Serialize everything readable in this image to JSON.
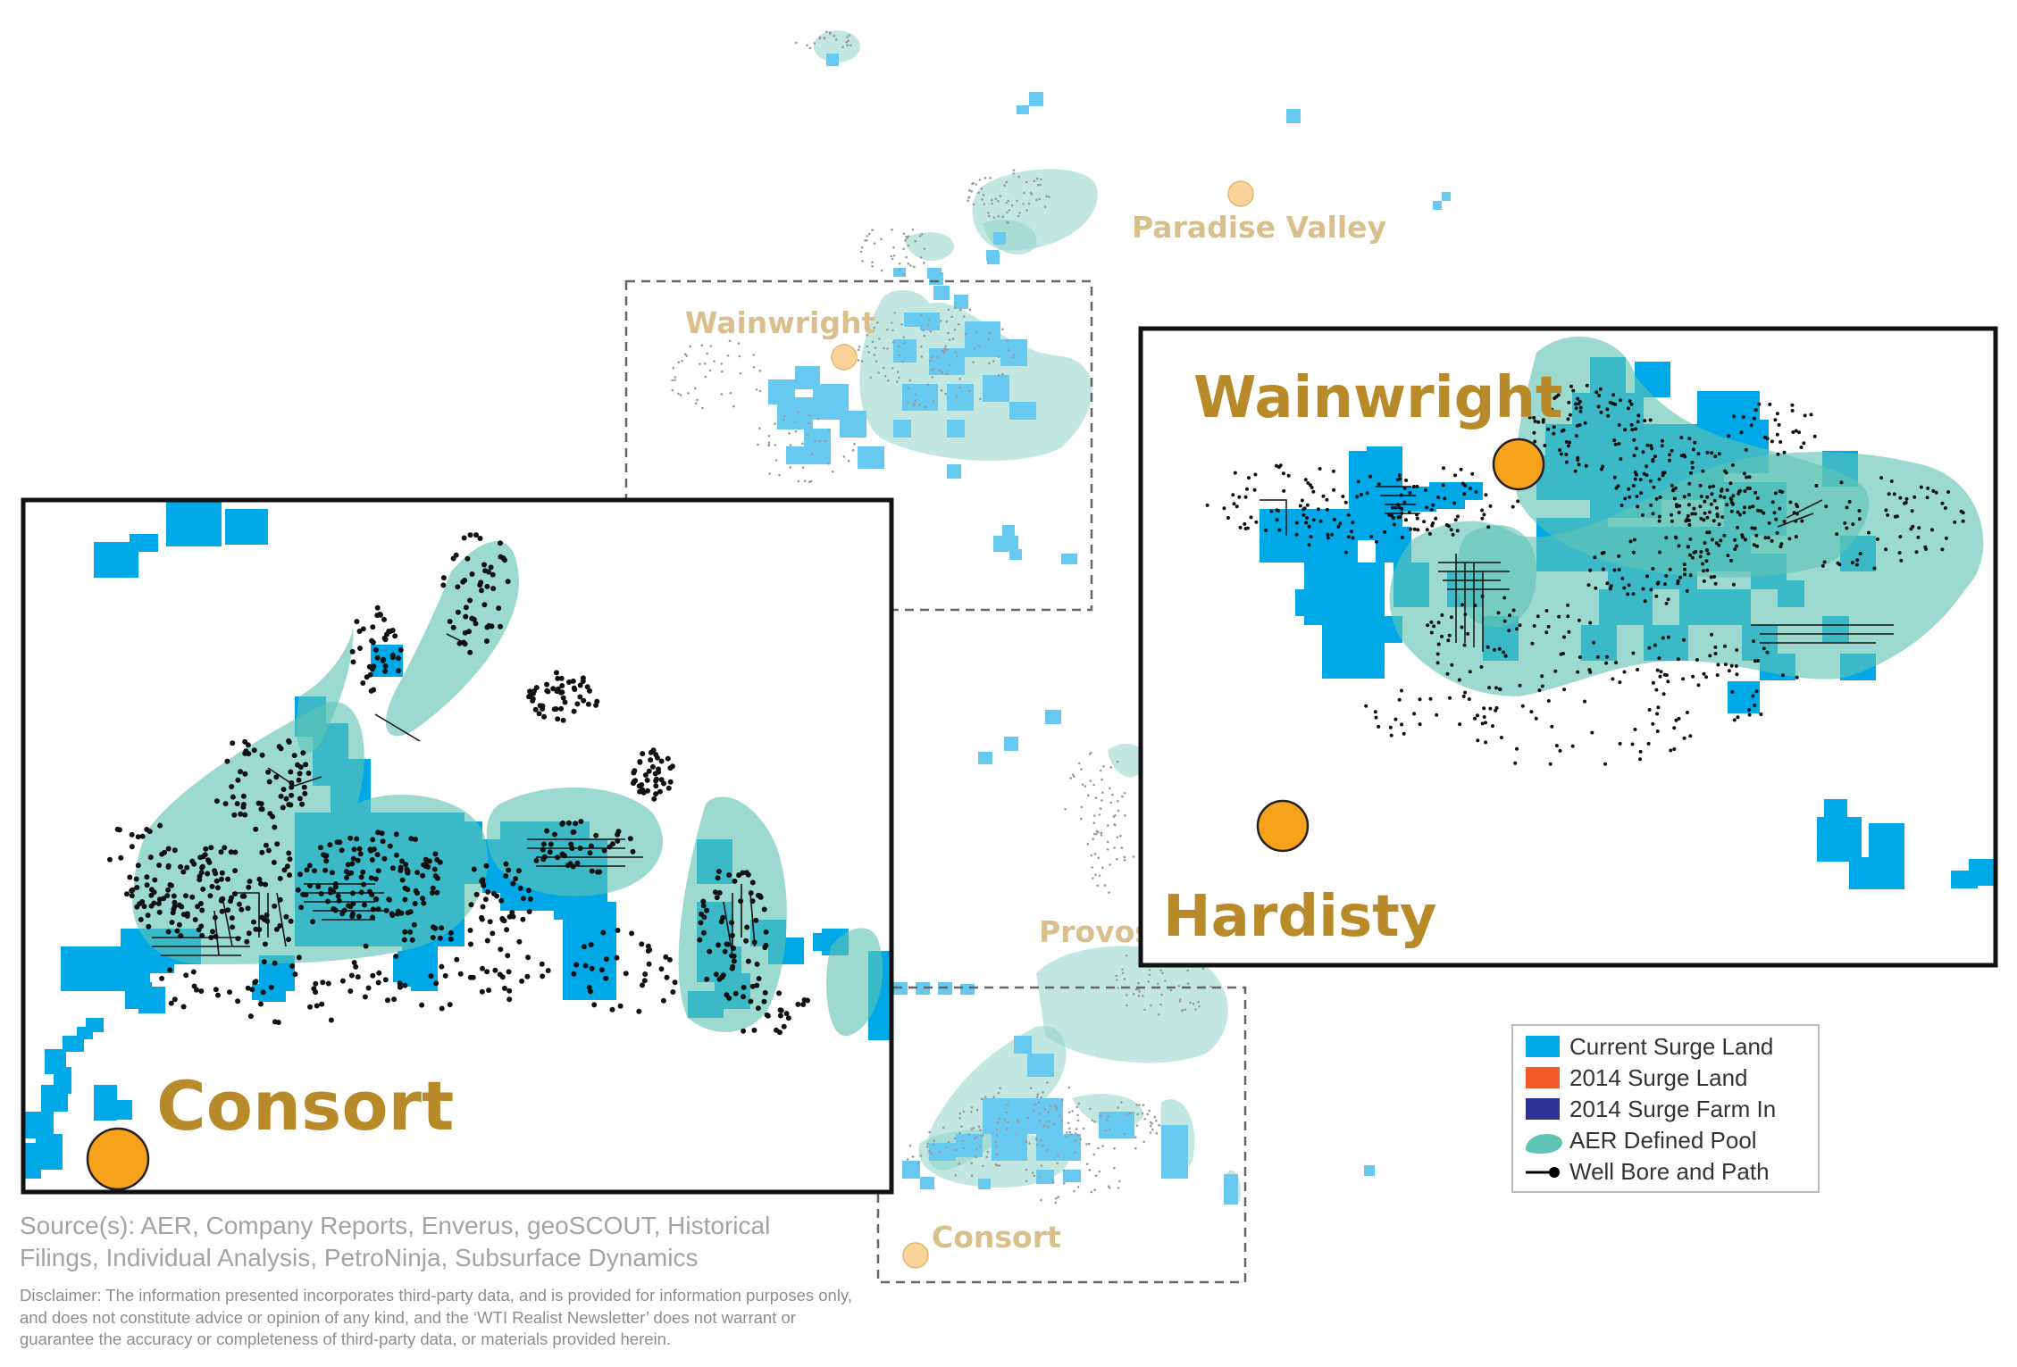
{
  "map": {
    "town_labels": {
      "paradise_valley": "Paradise Valley",
      "wainwright": "Wainwright",
      "provost": "Provost",
      "consort": "Consort"
    },
    "insets": {
      "consort": {
        "label": "Consort"
      },
      "wainwright_hardisty": {
        "label_wainwright": "Wainwright",
        "label_hardisty": "Hardisty"
      }
    }
  },
  "legend": {
    "items": [
      {
        "label": "Current Surge Land",
        "color": "#00a8e8",
        "symbol": "square"
      },
      {
        "label": "2014 Surge Land",
        "color": "#f15a29",
        "symbol": "square"
      },
      {
        "label": "2014 Surge Farm In",
        "color": "#2e3192",
        "symbol": "square"
      },
      {
        "label": "AER Defined Pool",
        "color": "#5fc4b3",
        "symbol": "pool-shape"
      },
      {
        "label": "Well Bore and Path",
        "color": "#000000",
        "symbol": "line-dot"
      }
    ]
  },
  "footer": {
    "source": "Source(s): AER, Company Reports, Enverus, geoSCOUT, Historical Filings, Individual Analysis, PetroNinja, Subsurface Dynamics",
    "disclaimer": "Disclaimer: The information presented incorporates third-party data, and is provided for information purposes only, and does not constitute advice or opinion of any kind, and the ‘WTI Realist Newsletter’ does not warrant or guarantee the accuracy or completeness of third-party data, or materials provided herein."
  },
  "colors": {
    "current_land": "#00a8e8",
    "current_land_light": "#67c9ef",
    "pool": "#5fc4b3",
    "town_marker": "#f7a21b",
    "town_marker_light": "#f9d39a",
    "town_label_light": "#d9bf8c",
    "inset_label": "#b98a2a"
  }
}
